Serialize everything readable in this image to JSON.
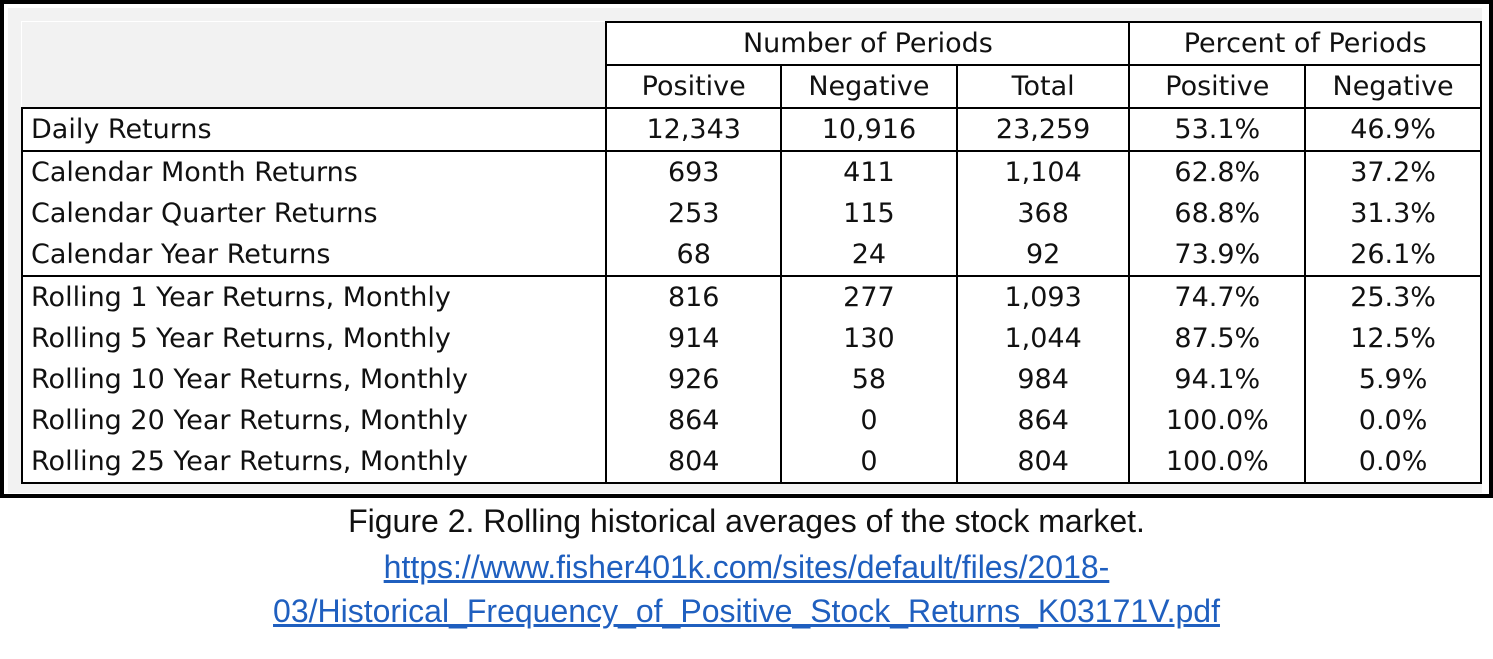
{
  "table": {
    "group_headers": [
      "Number of Periods",
      "Percent of Periods"
    ],
    "sub_headers": [
      "Positive",
      "Negative",
      "Total",
      "Positive",
      "Negative"
    ],
    "rows": [
      {
        "label": "Daily Returns",
        "pos": "12,343",
        "neg": "10,916",
        "total": "23,259",
        "pct_pos": "53.1%",
        "pct_neg": "46.9%"
      },
      {
        "label": "Calendar Month Returns",
        "pos": "693",
        "neg": "411",
        "total": "1,104",
        "pct_pos": "62.8%",
        "pct_neg": "37.2%"
      },
      {
        "label": "Calendar Quarter Returns",
        "pos": "253",
        "neg": "115",
        "total": "368",
        "pct_pos": "68.8%",
        "pct_neg": "31.3%"
      },
      {
        "label": "Calendar Year Returns",
        "pos": "68",
        "neg": "24",
        "total": "92",
        "pct_pos": "73.9%",
        "pct_neg": "26.1%"
      },
      {
        "label": "Rolling 1 Year Returns, Monthly",
        "pos": "816",
        "neg": "277",
        "total": "1,093",
        "pct_pos": "74.7%",
        "pct_neg": "25.3%"
      },
      {
        "label": "Rolling 5 Year Returns, Monthly",
        "pos": "914",
        "neg": "130",
        "total": "1,044",
        "pct_pos": "87.5%",
        "pct_neg": "12.5%"
      },
      {
        "label": "Rolling 10 Year Returns, Monthly",
        "pos": "926",
        "neg": "58",
        "total": "984",
        "pct_pos": "94.1%",
        "pct_neg": "5.9%"
      },
      {
        "label": "Rolling 20 Year Returns, Monthly",
        "pos": "864",
        "neg": "0",
        "total": "864",
        "pct_pos": "100.0%",
        "pct_neg": "0.0%"
      },
      {
        "label": "Rolling 25 Year Returns, Monthly",
        "pos": "804",
        "neg": "0",
        "total": "804",
        "pct_pos": "100.0%",
        "pct_neg": "0.0%"
      }
    ]
  },
  "caption": {
    "title": "Figure 2.  Rolling historical averages of the stock market.",
    "link_line1": "https://www.fisher401k.com/sites/default/files/2018-",
    "link_line2": "03/Historical_Frequency_of_Positive_Stock_Returns_K03171V.pdf"
  },
  "colors": {
    "link": "#1f5fbf",
    "frame_background": "#f2f2f2"
  }
}
